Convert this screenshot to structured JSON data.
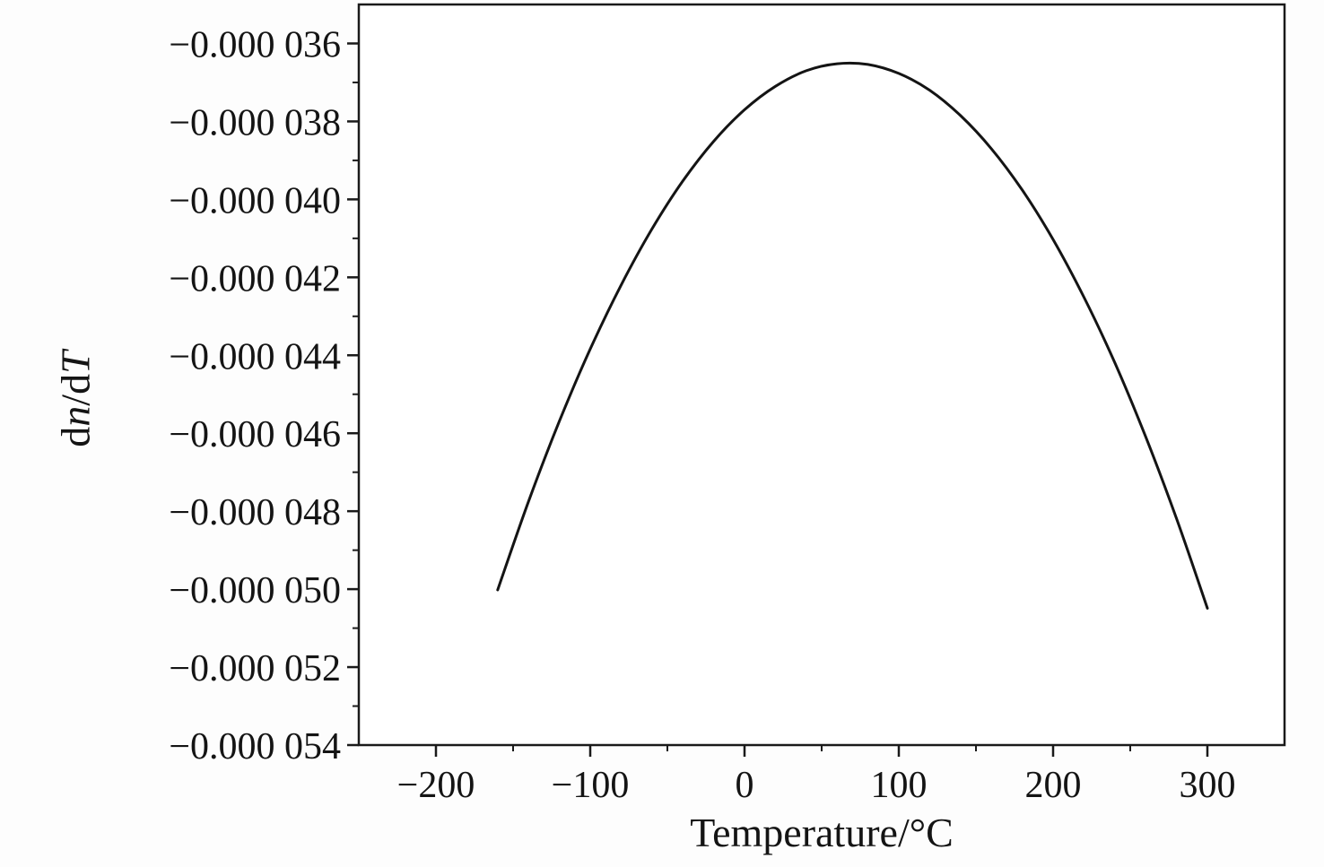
{
  "chart_data": {
    "type": "line",
    "title": "",
    "xlabel": "Temperature/°C",
    "ylabel": "dn/dT",
    "ylabel_parts": [
      {
        "text": "d",
        "italic": false
      },
      {
        "text": "n",
        "italic": true
      },
      {
        "text": "/d",
        "italic": false
      },
      {
        "text": "T",
        "italic": true
      }
    ],
    "xlim": [
      -250,
      350
    ],
    "ylim": [
      -5.4e-05,
      -3.5e-05
    ],
    "grid": false,
    "legend": false,
    "frame_color": "#1a1a1a",
    "line_color": "#141414",
    "line_width": 3,
    "x_minor_step": 50,
    "y_minor_step": 1e-06,
    "x_ticks": [
      {
        "value": -200,
        "label": "−200"
      },
      {
        "value": -100,
        "label": "−100"
      },
      {
        "value": 0,
        "label": "0"
      },
      {
        "value": 100,
        "label": "100"
      },
      {
        "value": 200,
        "label": "200"
      },
      {
        "value": 300,
        "label": "300"
      }
    ],
    "y_ticks": [
      {
        "value": -3.6e-05,
        "label": "−0.000 036"
      },
      {
        "value": -3.8e-05,
        "label": "−0.000 038"
      },
      {
        "value": -4e-05,
        "label": "−0.000 040"
      },
      {
        "value": -4.2e-05,
        "label": "−0.000 042"
      },
      {
        "value": -4.4e-05,
        "label": "−0.000 044"
      },
      {
        "value": -4.6e-05,
        "label": "−0.000 046"
      },
      {
        "value": -4.8e-05,
        "label": "−0.000 048"
      },
      {
        "value": -5e-05,
        "label": "−0.000 050"
      },
      {
        "value": -5.2e-05,
        "label": "−0.000 052"
      },
      {
        "value": -5.4e-05,
        "label": "−0.000 054"
      }
    ],
    "series": [
      {
        "name": "dn/dT",
        "points": [
          [
            -160,
            -5.002e-05
          ],
          [
            -140,
            -4.775e-05
          ],
          [
            -120,
            -4.569e-05
          ],
          [
            -100,
            -4.384e-05
          ],
          [
            -80,
            -4.22e-05
          ],
          [
            -60,
            -4.076e-05
          ],
          [
            -40,
            -3.953e-05
          ],
          [
            -20,
            -3.851e-05
          ],
          [
            0,
            -3.77e-05
          ],
          [
            20,
            -3.71e-05
          ],
          [
            40,
            -3.67e-05
          ],
          [
            60,
            -3.652e-05
          ],
          [
            80,
            -3.654e-05
          ],
          [
            100,
            -3.677e-05
          ],
          [
            120,
            -3.72e-05
          ],
          [
            140,
            -3.785e-05
          ],
          [
            160,
            -3.87e-05
          ],
          [
            180,
            -3.976e-05
          ],
          [
            200,
            -4.103e-05
          ],
          [
            220,
            -4.251e-05
          ],
          [
            240,
            -4.419e-05
          ],
          [
            260,
            -4.609e-05
          ],
          [
            280,
            -4.819e-05
          ],
          [
            300,
            -5.049e-05
          ]
        ]
      }
    ]
  }
}
